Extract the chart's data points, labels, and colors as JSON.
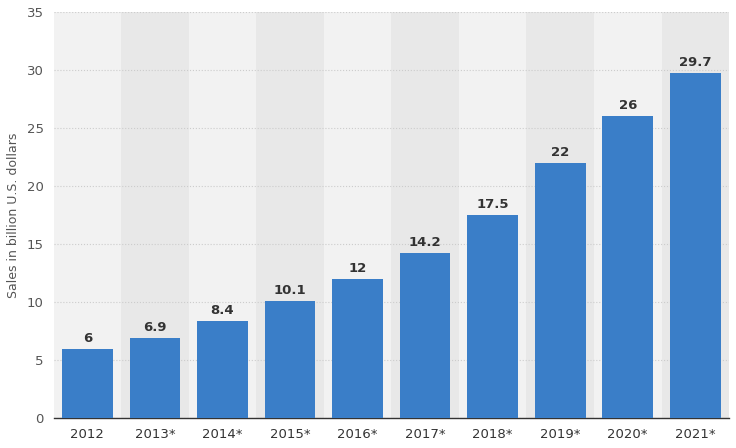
{
  "categories": [
    "2012",
    "2013*",
    "2014*",
    "2015*",
    "2016*",
    "2017*",
    "2018*",
    "2019*",
    "2020*",
    "2021*"
  ],
  "values": [
    6,
    6.9,
    8.4,
    10.1,
    12,
    14.2,
    17.5,
    22,
    26,
    29.7
  ],
  "bar_color": "#3a7ec8",
  "ylabel": "Sales in billion U.S. dollars",
  "ylim": [
    0,
    35
  ],
  "yticks": [
    0,
    5,
    10,
    15,
    20,
    25,
    30,
    35
  ],
  "background_color": "#ffffff",
  "col_bg_odd": "#f2f2f2",
  "col_bg_even": "#e8e8e8",
  "grid_color": "#cccccc",
  "label_fontsize": 9.5,
  "value_label_fontsize": 9.5,
  "axis_label_fontsize": 9,
  "bar_width": 0.75
}
